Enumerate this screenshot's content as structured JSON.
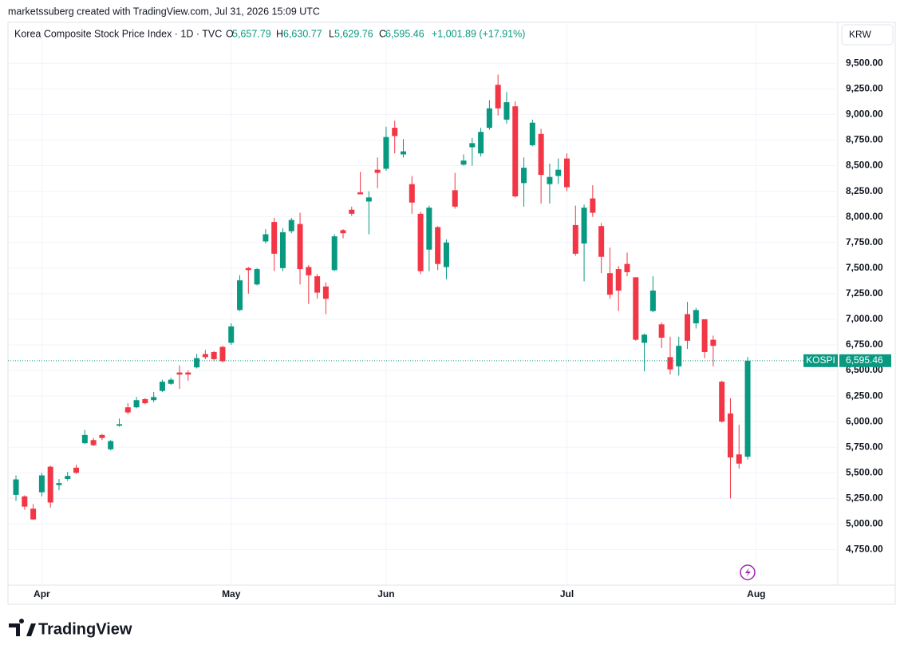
{
  "header": "marketssuberg created with TradingView.com, Jul 31, 2026 15:09 UTC",
  "logo": "TradingView",
  "chart_data": {
    "type": "candlestick",
    "title": "Korea Composite Stock Price Index · 1D · TVC",
    "legend": {
      "o_label": "O",
      "o": "5,657.79",
      "h_label": "H",
      "h": "6,630.77",
      "l_label": "L",
      "l": "5,629.76",
      "c_label": "C",
      "c": "6,595.46",
      "change": "+1,001.89 (+17.91%)"
    },
    "currency": "KRW",
    "symbol": "KOSPI",
    "last_label": "6,595.46",
    "up_color": "#089981",
    "down_color": "#f23645",
    "grid": true,
    "open": [
      5285,
      5270,
      5150,
      5310,
      5560,
      5380,
      5440,
      5550,
      5790,
      5820,
      5870,
      5730,
      5960,
      6140,
      6140,
      6220,
      6210,
      6300,
      6370,
      6480,
      6480,
      6530,
      6660,
      6680,
      6730,
      6770,
      7090,
      7500,
      7340,
      7760,
      7950,
      7500,
      7860,
      7930,
      7510,
      7420,
      7320,
      7480,
      7870,
      8070,
      8240,
      8150,
      8460,
      8470,
      8870,
      8610,
      8320,
      8030,
      7680,
      7900,
      7510,
      8260,
      8510,
      8680,
      8620,
      8870,
      9290,
      8950,
      9080,
      8330,
      8700,
      8810,
      8320,
      8400,
      8570,
      7920,
      7740,
      8180,
      7910,
      7450,
      7490,
      7540,
      7410,
      6770,
      7080,
      6950,
      6630,
      6540,
      7050,
      6960,
      7000,
      6800,
      6390,
      6080,
      5680,
      5657.79
    ],
    "high": [
      5475,
      5280,
      5195,
      5500,
      5570,
      5440,
      5510,
      5580,
      5920,
      5840,
      5880,
      5820,
      6030,
      6180,
      6240,
      6230,
      6290,
      6410,
      6430,
      6550,
      6500,
      6660,
      6700,
      6690,
      6740,
      6960,
      7430,
      7510,
      7500,
      7880,
      7990,
      7890,
      7990,
      8040,
      7530,
      7440,
      7360,
      7830,
      7880,
      8100,
      8440,
      8250,
      8580,
      8880,
      8940,
      8760,
      8400,
      8050,
      8110,
      7910,
      7780,
      8430,
      8610,
      8770,
      8870,
      9140,
      9390,
      9220,
      9130,
      8580,
      8950,
      8860,
      8520,
      8570,
      8620,
      8110,
      8120,
      8310,
      7940,
      7700,
      7520,
      7650,
      7410,
      6860,
      7420,
      6970,
      6830,
      6830,
      7170,
      7110,
      7000,
      6840,
      6400,
      6230,
      5970,
      6630.77
    ],
    "low": [
      5225,
      5140,
      5040,
      5270,
      5160,
      5330,
      5420,
      5490,
      5780,
      5760,
      5820,
      5720,
      5950,
      6070,
      6130,
      6170,
      6190,
      6290,
      6360,
      6320,
      6400,
      6520,
      6610,
      6590,
      6580,
      6750,
      7080,
      7250,
      7330,
      7740,
      7470,
      7470,
      7840,
      7340,
      7150,
      7200,
      7050,
      7470,
      7790,
      8010,
      8230,
      7830,
      8280,
      8450,
      8620,
      8580,
      8030,
      7440,
      7470,
      7480,
      7390,
      8080,
      8500,
      8500,
      8590,
      8850,
      8990,
      8910,
      8190,
      8100,
      8690,
      8130,
      8130,
      8320,
      8250,
      7620,
      7370,
      8000,
      7450,
      7200,
      7080,
      7420,
      6790,
      6490,
      7070,
      6720,
      6460,
      6450,
      6710,
      6910,
      6620,
      6540,
      5990,
      5250,
      5540,
      5629.76
    ],
    "close": [
      5436,
      5170,
      5045,
      5475,
      5210,
      5400,
      5470,
      5500,
      5870,
      5770,
      5840,
      5810,
      5975,
      6090,
      6210,
      6180,
      6240,
      6390,
      6410,
      6460,
      6460,
      6620,
      6630,
      6610,
      6590,
      6930,
      7380,
      7480,
      7490,
      7830,
      7640,
      7850,
      7970,
      7490,
      7430,
      7260,
      7200,
      7810,
      7840,
      8030,
      8220,
      8190,
      8430,
      8780,
      8790,
      8640,
      8140,
      7470,
      8090,
      7540,
      7750,
      8100,
      8550,
      8720,
      8830,
      9060,
      9060,
      9120,
      8200,
      8480,
      8920,
      8410,
      8390,
      8460,
      8290,
      7640,
      8090,
      8040,
      7610,
      7240,
      7280,
      7460,
      6800,
      6850,
      7280,
      6820,
      6510,
      6740,
      6790,
      7090,
      6680,
      6740,
      6000,
      5650,
      5590,
      6595.46
    ],
    "xlim": [
      -0.93,
      95.47
    ],
    "xticks": [
      {
        "value": 3,
        "label": "Apr"
      },
      {
        "value": 25,
        "label": "May"
      },
      {
        "value": 43,
        "label": "Jun"
      },
      {
        "value": 64,
        "label": "Jul"
      },
      {
        "value": 86,
        "label": "Aug"
      }
    ],
    "ylim": [
      4403,
      9900
    ],
    "yticks": [
      {
        "value": 4750,
        "label": "4,750.00"
      },
      {
        "value": 5000,
        "label": "5,000.00"
      },
      {
        "value": 5250,
        "label": "5,250.00"
      },
      {
        "value": 5500,
        "label": "5,500.00"
      },
      {
        "value": 5750,
        "label": "5,750.00"
      },
      {
        "value": 6000,
        "label": "6,000.00"
      },
      {
        "value": 6250,
        "label": "6,250.00"
      },
      {
        "value": 6500,
        "label": "6,500.00"
      },
      {
        "value": 6750,
        "label": "6,750.00"
      },
      {
        "value": 7000,
        "label": "7,000.00"
      },
      {
        "value": 7250,
        "label": "7,250.00"
      },
      {
        "value": 7500,
        "label": "7,500.00"
      },
      {
        "value": 7750,
        "label": "7,750.00"
      },
      {
        "value": 8000,
        "label": "8,000.00"
      },
      {
        "value": 8250,
        "label": "8,250.00"
      },
      {
        "value": 8500,
        "label": "8,500.00"
      },
      {
        "value": 8750,
        "label": "8,750.00"
      },
      {
        "value": 9000,
        "label": "9,000.00"
      },
      {
        "value": 9250,
        "label": "9,250.00"
      },
      {
        "value": 9500,
        "label": "9,500.00"
      }
    ]
  }
}
